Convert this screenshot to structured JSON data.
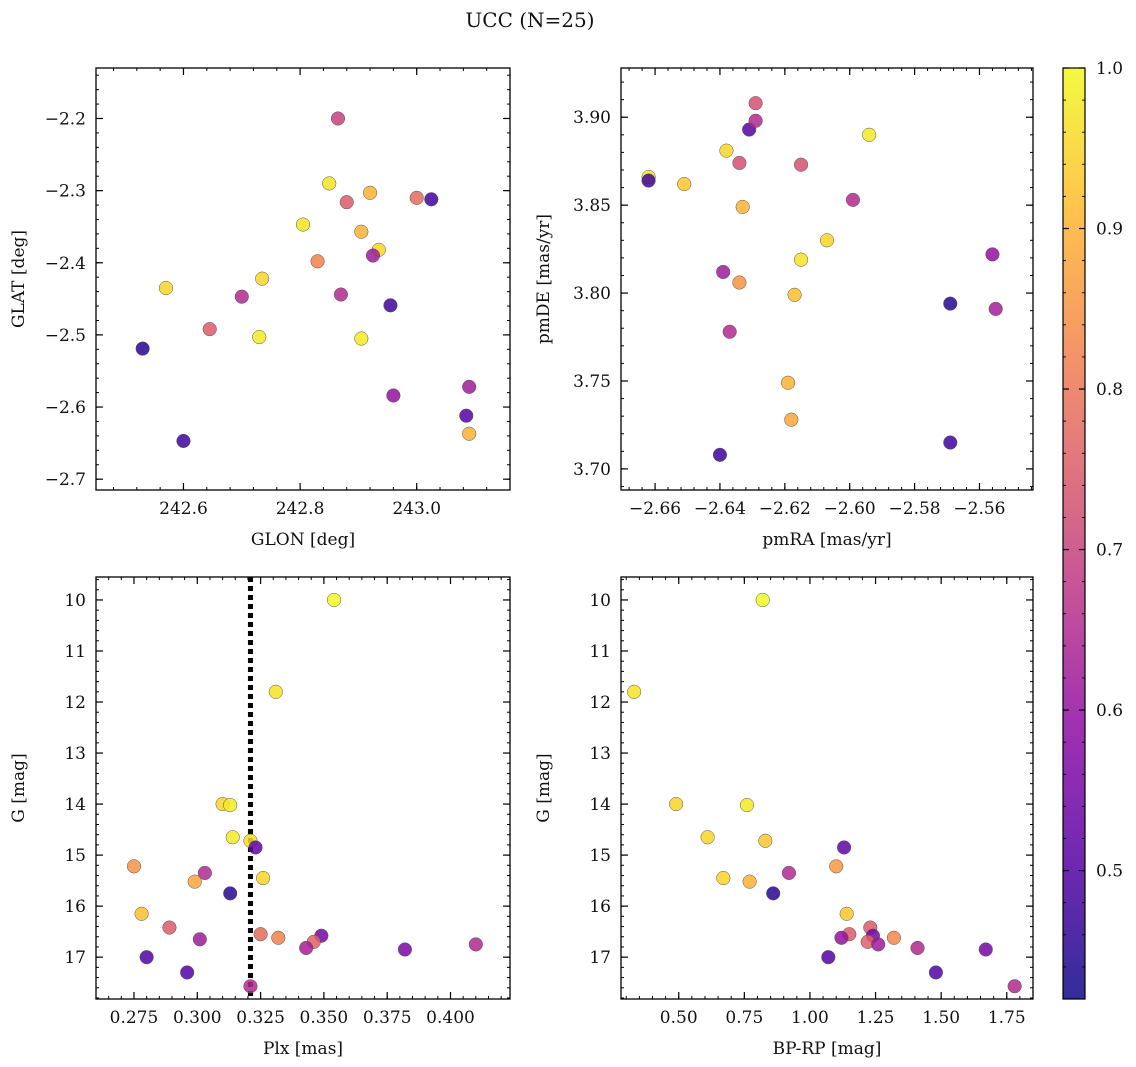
{
  "figure": {
    "title": "UCC (N=25)"
  },
  "colorbar": {
    "cmap": "plasma",
    "vmin": 0.42,
    "vmax": 1.0,
    "ticks": [
      "0.5",
      "0.6",
      "0.7",
      "0.8",
      "0.9",
      "1.0"
    ],
    "tick_values": [
      0.5,
      0.6,
      0.7,
      0.8,
      0.9,
      1.0
    ]
  },
  "chart_data": [
    {
      "type": "scatter",
      "xlabel": "GLON [deg]",
      "ylabel": "GLAT [deg]",
      "xlim": [
        242.45,
        243.16
      ],
      "ylim": [
        -2.715,
        -2.13
      ],
      "y_inverted": false,
      "xticks": [
        242.6,
        242.8,
        243.0
      ],
      "xtick_labels": [
        "242.6",
        "242.8",
        "243.0"
      ],
      "yticks": [
        -2.7,
        -2.6,
        -2.5,
        -2.4,
        -2.3,
        -2.2
      ],
      "ytick_labels": [
        "−2.7",
        "−2.6",
        "−2.5",
        "−2.4",
        "−2.3",
        "−2.2"
      ],
      "points": [
        {
          "x": 242.865,
          "y": -2.2,
          "c": 0.7
        },
        {
          "x": 242.85,
          "y": -2.29,
          "c": 0.97
        },
        {
          "x": 242.92,
          "y": -2.303,
          "c": 0.9
        },
        {
          "x": 242.88,
          "y": -2.316,
          "c": 0.75
        },
        {
          "x": 243.0,
          "y": -2.31,
          "c": 0.78
        },
        {
          "x": 243.025,
          "y": -2.312,
          "c": 0.48
        },
        {
          "x": 242.805,
          "y": -2.347,
          "c": 0.97
        },
        {
          "x": 242.905,
          "y": -2.357,
          "c": 0.9
        },
        {
          "x": 242.935,
          "y": -2.382,
          "c": 0.95
        },
        {
          "x": 242.925,
          "y": -2.39,
          "c": 0.62
        },
        {
          "x": 242.83,
          "y": -2.398,
          "c": 0.82
        },
        {
          "x": 242.735,
          "y": -2.422,
          "c": 0.95
        },
        {
          "x": 242.57,
          "y": -2.435,
          "c": 0.95
        },
        {
          "x": 242.87,
          "y": -2.444,
          "c": 0.65
        },
        {
          "x": 242.7,
          "y": -2.447,
          "c": 0.65
        },
        {
          "x": 242.955,
          "y": -2.459,
          "c": 0.48
        },
        {
          "x": 242.645,
          "y": -2.492,
          "c": 0.75
        },
        {
          "x": 242.73,
          "y": -2.503,
          "c": 0.98
        },
        {
          "x": 242.905,
          "y": -2.505,
          "c": 0.98
        },
        {
          "x": 242.53,
          "y": -2.519,
          "c": 0.45
        },
        {
          "x": 243.09,
          "y": -2.572,
          "c": 0.62
        },
        {
          "x": 242.96,
          "y": -2.584,
          "c": 0.6
        },
        {
          "x": 243.085,
          "y": -2.612,
          "c": 0.5
        },
        {
          "x": 243.09,
          "y": -2.637,
          "c": 0.9
        },
        {
          "x": 242.6,
          "y": -2.647,
          "c": 0.48
        }
      ]
    },
    {
      "type": "scatter",
      "xlabel": "pmRA [mas/yr]",
      "ylabel": "pmDE [mas/yr]",
      "xlim": [
        -2.6705,
        -2.5435
      ],
      "ylim": [
        3.688,
        3.928
      ],
      "y_inverted": false,
      "xticks": [
        -2.66,
        -2.64,
        -2.62,
        -2.6,
        -2.58,
        -2.56
      ],
      "xtick_labels": [
        "−2.66",
        "−2.64",
        "−2.62",
        "−2.60",
        "−2.58",
        "−2.56"
      ],
      "yticks": [
        3.7,
        3.75,
        3.8,
        3.85,
        3.9
      ],
      "ytick_labels": [
        "3.70",
        "3.75",
        "3.80",
        "3.85",
        "3.90"
      ],
      "points": [
        {
          "x": -2.629,
          "y": 3.908,
          "c": 0.73
        },
        {
          "x": -2.631,
          "y": 3.893,
          "c": 0.5
        },
        {
          "x": -2.629,
          "y": 3.898,
          "c": 0.65
        },
        {
          "x": -2.594,
          "y": 3.89,
          "c": 0.98
        },
        {
          "x": -2.638,
          "y": 3.881,
          "c": 0.95
        },
        {
          "x": -2.634,
          "y": 3.874,
          "c": 0.73
        },
        {
          "x": -2.615,
          "y": 3.873,
          "c": 0.73
        },
        {
          "x": -2.662,
          "y": 3.866,
          "c": 0.98
        },
        {
          "x": -2.662,
          "y": 3.864,
          "c": 0.48
        },
        {
          "x": -2.651,
          "y": 3.862,
          "c": 0.93
        },
        {
          "x": -2.599,
          "y": 3.853,
          "c": 0.65
        },
        {
          "x": -2.633,
          "y": 3.849,
          "c": 0.9
        },
        {
          "x": -2.607,
          "y": 3.83,
          "c": 0.95
        },
        {
          "x": -2.556,
          "y": 3.822,
          "c": 0.6
        },
        {
          "x": -2.615,
          "y": 3.819,
          "c": 0.97
        },
        {
          "x": -2.639,
          "y": 3.812,
          "c": 0.62
        },
        {
          "x": -2.634,
          "y": 3.806,
          "c": 0.85
        },
        {
          "x": -2.617,
          "y": 3.799,
          "c": 0.92
        },
        {
          "x": -2.569,
          "y": 3.794,
          "c": 0.45
        },
        {
          "x": -2.555,
          "y": 3.791,
          "c": 0.63
        },
        {
          "x": -2.637,
          "y": 3.778,
          "c": 0.65
        },
        {
          "x": -2.619,
          "y": 3.749,
          "c": 0.9
        },
        {
          "x": -2.618,
          "y": 3.728,
          "c": 0.88
        },
        {
          "x": -2.569,
          "y": 3.715,
          "c": 0.48
        },
        {
          "x": -2.64,
          "y": 3.708,
          "c": 0.48
        }
      ]
    },
    {
      "type": "scatter",
      "xlabel": "Plx [mas]",
      "ylabel": "G [mag]",
      "xlim": [
        0.26,
        0.4235
      ],
      "ylim": [
        17.82,
        9.55
      ],
      "y_inverted": true,
      "vline": {
        "x": 0.321,
        "style": "dotted",
        "color": "#000000"
      },
      "xticks": [
        0.275,
        0.3,
        0.325,
        0.35,
        0.375,
        0.4
      ],
      "xtick_labels": [
        "0.275",
        "0.300",
        "0.325",
        "0.350",
        "0.375",
        "0.400"
      ],
      "yticks": [
        10,
        11,
        12,
        13,
        14,
        15,
        16,
        17
      ],
      "ytick_labels": [
        "10",
        "11",
        "12",
        "13",
        "14",
        "15",
        "16",
        "17"
      ],
      "points": [
        {
          "x": 0.354,
          "y": 10.0,
          "c": 1.0
        },
        {
          "x": 0.331,
          "y": 11.8,
          "c": 0.97
        },
        {
          "x": 0.31,
          "y": 14.0,
          "c": 0.95
        },
        {
          "x": 0.313,
          "y": 14.02,
          "c": 0.98
        },
        {
          "x": 0.314,
          "y": 14.65,
          "c": 0.98
        },
        {
          "x": 0.321,
          "y": 14.72,
          "c": 0.96
        },
        {
          "x": 0.323,
          "y": 14.85,
          "c": 0.52
        },
        {
          "x": 0.275,
          "y": 15.22,
          "c": 0.85
        },
        {
          "x": 0.303,
          "y": 15.35,
          "c": 0.65
        },
        {
          "x": 0.326,
          "y": 15.45,
          "c": 0.95
        },
        {
          "x": 0.299,
          "y": 15.52,
          "c": 0.88
        },
        {
          "x": 0.313,
          "y": 15.75,
          "c": 0.45
        },
        {
          "x": 0.278,
          "y": 16.15,
          "c": 0.92
        },
        {
          "x": 0.289,
          "y": 16.42,
          "c": 0.75
        },
        {
          "x": 0.325,
          "y": 16.55,
          "c": 0.78
        },
        {
          "x": 0.349,
          "y": 16.58,
          "c": 0.55
        },
        {
          "x": 0.332,
          "y": 16.62,
          "c": 0.82
        },
        {
          "x": 0.301,
          "y": 16.65,
          "c": 0.62
        },
        {
          "x": 0.346,
          "y": 16.7,
          "c": 0.76
        },
        {
          "x": 0.343,
          "y": 16.82,
          "c": 0.63
        },
        {
          "x": 0.382,
          "y": 16.85,
          "c": 0.56
        },
        {
          "x": 0.41,
          "y": 16.75,
          "c": 0.65
        },
        {
          "x": 0.28,
          "y": 17.0,
          "c": 0.5
        },
        {
          "x": 0.296,
          "y": 17.3,
          "c": 0.5
        },
        {
          "x": 0.321,
          "y": 17.57,
          "c": 0.65
        }
      ]
    },
    {
      "type": "scatter",
      "xlabel": "BP-RP [mag]",
      "ylabel": "G [mag]",
      "xlim": [
        0.28,
        1.85
      ],
      "ylim": [
        17.82,
        9.55
      ],
      "y_inverted": true,
      "xticks": [
        0.5,
        0.75,
        1.0,
        1.25,
        1.5,
        1.75
      ],
      "xtick_labels": [
        "0.50",
        "0.75",
        "1.00",
        "1.25",
        "1.50",
        "1.75"
      ],
      "yticks": [
        10,
        11,
        12,
        13,
        14,
        15,
        16,
        17
      ],
      "ytick_labels": [
        "10",
        "11",
        "12",
        "13",
        "14",
        "15",
        "16",
        "17"
      ],
      "points": [
        {
          "x": 0.82,
          "y": 10.0,
          "c": 1.0
        },
        {
          "x": 0.33,
          "y": 11.8,
          "c": 0.97
        },
        {
          "x": 0.49,
          "y": 14.0,
          "c": 0.95
        },
        {
          "x": 0.76,
          "y": 14.02,
          "c": 0.98
        },
        {
          "x": 0.61,
          "y": 14.65,
          "c": 0.95
        },
        {
          "x": 0.83,
          "y": 14.72,
          "c": 0.93
        },
        {
          "x": 1.13,
          "y": 14.85,
          "c": 0.52
        },
        {
          "x": 1.1,
          "y": 15.22,
          "c": 0.86
        },
        {
          "x": 0.92,
          "y": 15.35,
          "c": 0.65
        },
        {
          "x": 0.67,
          "y": 15.45,
          "c": 0.95
        },
        {
          "x": 0.77,
          "y": 15.52,
          "c": 0.9
        },
        {
          "x": 0.86,
          "y": 15.75,
          "c": 0.45
        },
        {
          "x": 1.14,
          "y": 16.15,
          "c": 0.93
        },
        {
          "x": 1.23,
          "y": 16.42,
          "c": 0.75
        },
        {
          "x": 1.15,
          "y": 16.55,
          "c": 0.75
        },
        {
          "x": 1.24,
          "y": 16.58,
          "c": 0.55
        },
        {
          "x": 1.32,
          "y": 16.62,
          "c": 0.83
        },
        {
          "x": 1.12,
          "y": 16.62,
          "c": 0.6
        },
        {
          "x": 1.22,
          "y": 16.7,
          "c": 0.76
        },
        {
          "x": 1.26,
          "y": 16.75,
          "c": 0.62
        },
        {
          "x": 1.41,
          "y": 16.82,
          "c": 0.65
        },
        {
          "x": 1.67,
          "y": 16.85,
          "c": 0.55
        },
        {
          "x": 1.07,
          "y": 17.0,
          "c": 0.5
        },
        {
          "x": 1.48,
          "y": 17.3,
          "c": 0.5
        },
        {
          "x": 1.78,
          "y": 17.57,
          "c": 0.65
        }
      ]
    }
  ]
}
